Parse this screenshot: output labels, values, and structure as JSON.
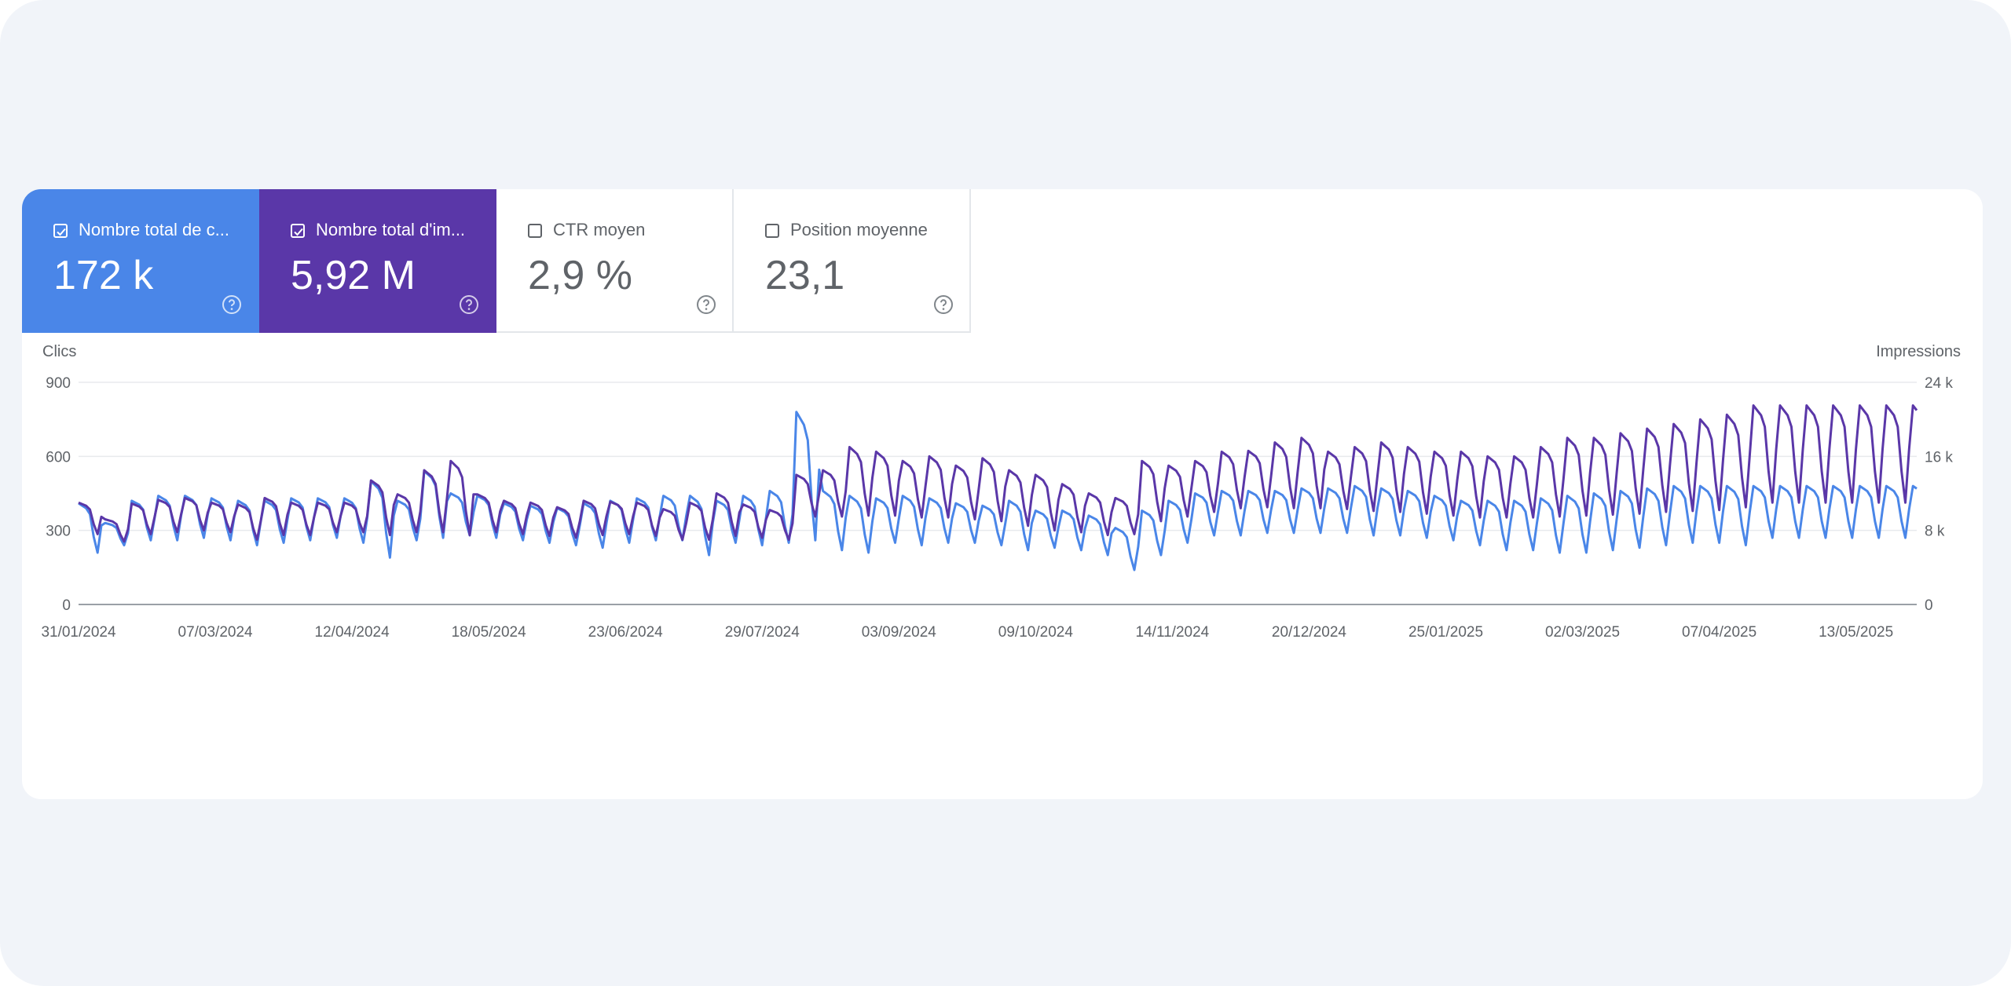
{
  "colors": {
    "clicks": "#4a86e8",
    "impressions": "#5a37a8",
    "grid": "#e8eaed",
    "axis": "#9aa0a6",
    "tick": "#5f6368"
  },
  "metrics": [
    {
      "id": "clicks",
      "label": "Nombre total de c...",
      "value": "172 k",
      "selected": true,
      "color": "#4a86e8",
      "icon": "help-circle-icon"
    },
    {
      "id": "impressions",
      "label": "Nombre total d'im...",
      "value": "5,92 M",
      "selected": true,
      "color": "#5a37a8",
      "icon": "help-circle-icon"
    },
    {
      "id": "ctr",
      "label": "CTR moyen",
      "value": "2,9 %",
      "selected": false,
      "icon": "help-circle-icon"
    },
    {
      "id": "position",
      "label": "Position moyenne",
      "value": "23,1",
      "selected": false,
      "icon": "help-circle-icon"
    }
  ],
  "chart_data": {
    "type": "line",
    "title": "",
    "y_left_label": "Clics",
    "y_right_label": "Impressions",
    "y_left_ticks": [
      "0",
      "300",
      "600",
      "900"
    ],
    "y_right_ticks": [
      "0",
      "8 k",
      "16 k",
      "24 k"
    ],
    "y_left_range": [
      0,
      900
    ],
    "y_right_range": [
      0,
      24000
    ],
    "x_range": [
      "2024-01-31",
      "2025-05-29"
    ],
    "x_ticks": [
      "31/01/2024",
      "07/03/2024",
      "12/04/2024",
      "18/05/2024",
      "23/06/2024",
      "29/07/2024",
      "03/09/2024",
      "09/10/2024",
      "14/11/2024",
      "20/12/2024",
      "25/01/2025",
      "02/03/2025",
      "07/04/2025",
      "13/05/2025"
    ],
    "grid": true,
    "series": [
      {
        "name": "Clics",
        "axis": "left",
        "color": "#4a86e8",
        "weekly_high": [
          410,
          330,
          420,
          440,
          440,
          430,
          420,
          420,
          430,
          430,
          430,
          500,
          420,
          540,
          450,
          440,
          410,
          400,
          390,
          410,
          420,
          430,
          440,
          440,
          420,
          440,
          460,
          780,
          460,
          440,
          430,
          440,
          430,
          410,
          400,
          420,
          380,
          380,
          360,
          310,
          380,
          420,
          450,
          460,
          460,
          460,
          470,
          470,
          480,
          470,
          460,
          440,
          420,
          420,
          420,
          430,
          440,
          450,
          460,
          470,
          480,
          480,
          480,
          480
        ],
        "weekly_low": [
          210,
          240,
          260,
          260,
          270,
          260,
          240,
          250,
          260,
          270,
          250,
          190,
          260,
          270,
          280,
          270,
          260,
          250,
          240,
          230,
          250,
          260,
          260,
          200,
          250,
          240,
          250,
          260,
          220,
          210,
          250,
          240,
          250,
          250,
          240,
          220,
          230,
          220,
          200,
          140,
          200,
          250,
          280,
          280,
          290,
          290,
          290,
          290,
          280,
          280,
          270,
          260,
          240,
          220,
          220,
          210,
          210,
          220,
          230,
          240,
          250,
          250,
          240,
          270
        ]
      },
      {
        "name": "Impressions",
        "axis": "right",
        "color": "#5a37a8",
        "weekly_high": [
          11000,
          9200,
          10900,
          11300,
          11500,
          11000,
          10800,
          11500,
          11000,
          11000,
          11000,
          13400,
          11900,
          14500,
          15500,
          11900,
          11200,
          11000,
          10500,
          11200,
          11100,
          11000,
          10300,
          11000,
          12000,
          10800,
          10200,
          14000,
          14500,
          17000,
          16500,
          15500,
          16000,
          15000,
          15800,
          14500,
          14000,
          13000,
          12000,
          11500,
          15500,
          15000,
          15500,
          16500,
          16600,
          17500,
          18000,
          16500,
          17000,
          17500,
          17000,
          16500,
          16500,
          16000,
          16000,
          17000,
          18000,
          18000,
          18500,
          19000,
          19500,
          20000,
          20500,
          21500
        ],
        "weekly_low": [
          7600,
          6800,
          7600,
          7800,
          8000,
          7800,
          7000,
          7500,
          7500,
          7800,
          7800,
          7500,
          7800,
          7800,
          7500,
          7800,
          7600,
          7400,
          7200,
          7500,
          7600,
          7400,
          7000,
          7000,
          7400,
          7200,
          7000,
          9500,
          9500,
          9600,
          9600,
          9400,
          9400,
          9200,
          9000,
          8500,
          8000,
          7800,
          7500,
          7600,
          9000,
          9500,
          10000,
          10400,
          10500,
          10400,
          10400,
          10300,
          10100,
          10000,
          9800,
          9600,
          9400,
          9400,
          9400,
          9500,
          9600,
          9700,
          9800,
          10000,
          10100,
          10200,
          10500,
          11000
        ]
      }
    ]
  }
}
